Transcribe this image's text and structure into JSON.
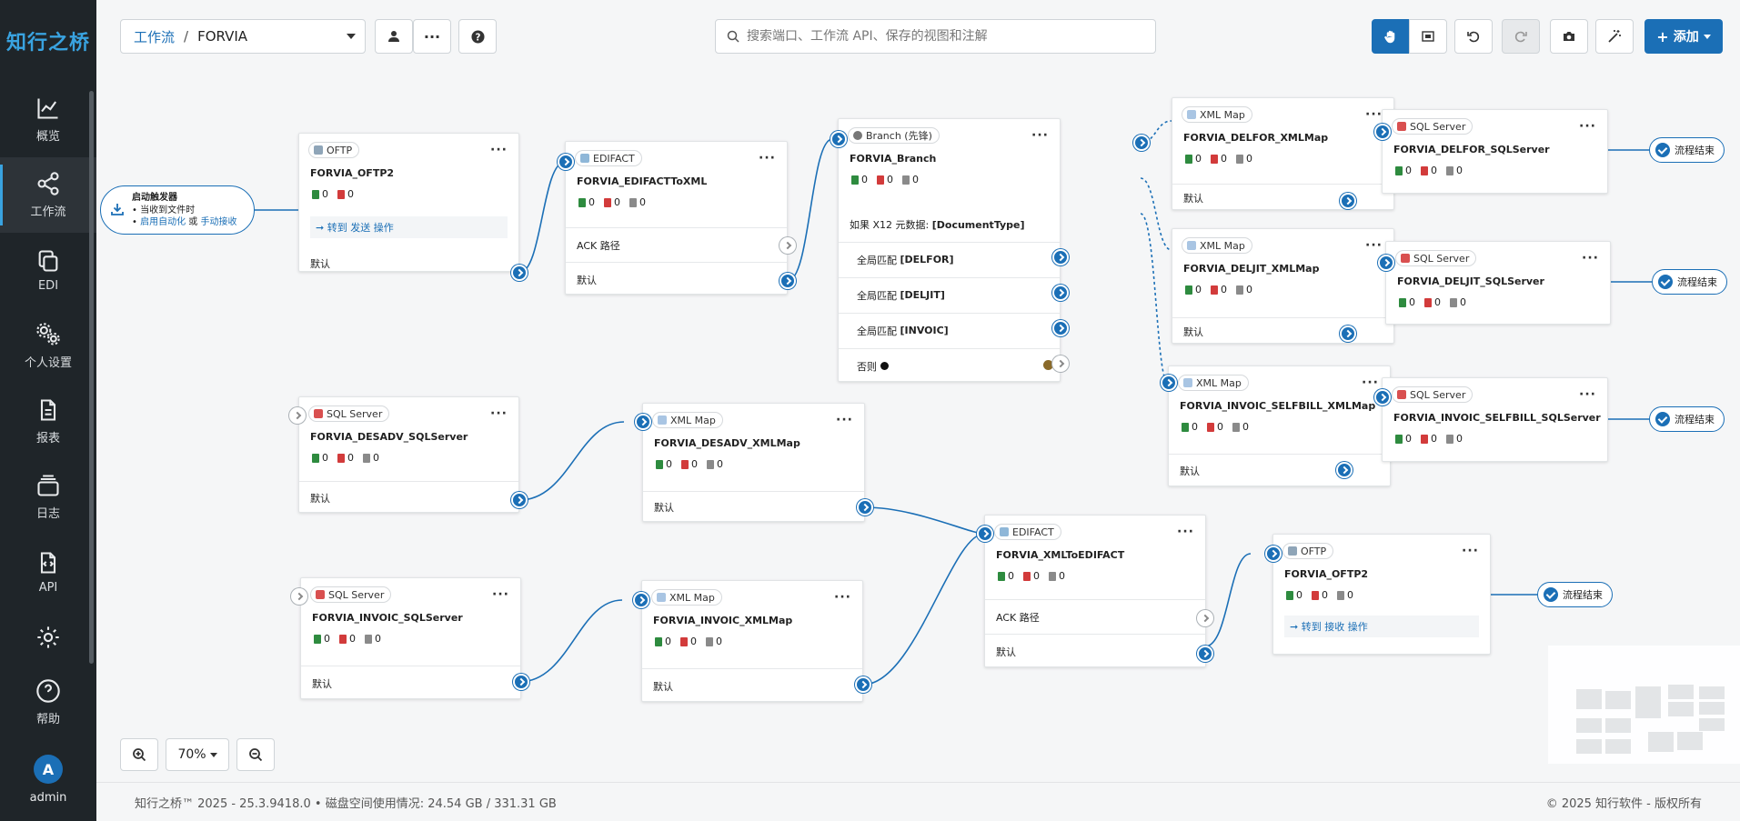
{
  "app": {
    "logo": "知行之桥"
  },
  "sidebar": {
    "items": [
      {
        "label": "概览",
        "icon": "chart-icon"
      },
      {
        "label": "工作流",
        "icon": "share-icon",
        "active": true
      },
      {
        "label": "EDI",
        "icon": "copy-icon"
      },
      {
        "label": "个人设置",
        "icon": "gears-icon"
      },
      {
        "label": "报表",
        "icon": "file-icon"
      },
      {
        "label": "日志",
        "icon": "stack-icon"
      },
      {
        "label": "API",
        "icon": "file-code-icon"
      },
      {
        "label": "",
        "icon": "gear-icon"
      },
      {
        "label": "帮助",
        "icon": "help-icon"
      }
    ],
    "user": {
      "initial": "A",
      "name": "admin"
    }
  },
  "header": {
    "breadcrumb_root": "工作流",
    "breadcrumb_sep": "/",
    "breadcrumb_current": "FORVIA",
    "search_placeholder": "搜索端口、工作流 API、保存的视图和注解",
    "add_label": "添加"
  },
  "trigger": {
    "title": "启动触发器",
    "line1": "当收到文件时",
    "link1": "启用自动化",
    "or": "或",
    "link2": "手动接收"
  },
  "nodes": {
    "oftp_in": {
      "type": "OFTP",
      "name": "FORVIA_OFTP2",
      "counts": [
        "0",
        "0"
      ],
      "action": "➞ 转到 发送 操作",
      "default": "默认"
    },
    "edifact_xml": {
      "type": "EDIFACT",
      "name": "FORVIA_EDIFACTToXML",
      "counts": [
        "0",
        "0",
        "0"
      ],
      "ack": "ACK 路径",
      "default": "默认"
    },
    "branch": {
      "type": "Branch (先锋)",
      "name": "FORVIA_Branch",
      "counts": [
        "0",
        "0",
        "0"
      ],
      "condition_prefix": "如果 X12 元数据:",
      "condition_field": "[DocumentType]",
      "cases": [
        {
          "prefix": "全局匹配",
          "value": "[DELFOR]"
        },
        {
          "prefix": "全局匹配",
          "value": "[DELJIT]"
        },
        {
          "prefix": "全局匹配",
          "value": "[INVOIC]"
        }
      ],
      "else": "否则"
    },
    "delfor_map": {
      "type": "XML Map",
      "name": "FORVIA_DELFOR_XMLMap",
      "counts": [
        "0",
        "0",
        "0"
      ],
      "default": "默认"
    },
    "deljit_map": {
      "type": "XML Map",
      "name": "FORVIA_DELJIT_XMLMap",
      "counts": [
        "0",
        "0",
        "0"
      ],
      "default": "默认"
    },
    "invoic_sb_map": {
      "type": "XML Map",
      "name": "FORVIA_INVOIC_SELFBILL_XMLMap",
      "counts": [
        "0",
        "0",
        "0"
      ],
      "default": "默认"
    },
    "delfor_sql": {
      "type": "SQL Server",
      "name": "FORVIA_DELFOR_SQLServer",
      "counts": [
        "0",
        "0",
        "0"
      ]
    },
    "deljit_sql": {
      "type": "SQL Server",
      "name": "FORVIA_DELJIT_SQLServer",
      "counts": [
        "0",
        "0",
        "0"
      ]
    },
    "invoic_sb_sql": {
      "type": "SQL Server",
      "name": "FORVIA_INVOIC_SELFBILL_SQLServer",
      "counts": [
        "0",
        "0",
        "0"
      ]
    },
    "desadv_sql": {
      "type": "SQL Server",
      "name": "FORVIA_DESADV_SQLServer",
      "counts": [
        "0",
        "0",
        "0"
      ],
      "default": "默认"
    },
    "desadv_map": {
      "type": "XML Map",
      "name": "FORVIA_DESADV_XMLMap",
      "counts": [
        "0",
        "0",
        "0"
      ],
      "default": "默认"
    },
    "invoic_sql": {
      "type": "SQL Server",
      "name": "FORVIA_INVOIC_SQLServer",
      "counts": [
        "0",
        "0",
        "0"
      ],
      "default": "默认"
    },
    "invoic_map": {
      "type": "XML Map",
      "name": "FORVIA_INVOIC_XMLMap",
      "counts": [
        "0",
        "0",
        "0"
      ],
      "default": "默认"
    },
    "xml_edifact": {
      "type": "EDIFACT",
      "name": "FORVIA_XMLToEDIFACT",
      "counts": [
        "0",
        "0",
        "0"
      ],
      "ack": "ACK 路径",
      "default": "默认"
    },
    "oftp_out": {
      "type": "OFTP",
      "name": "FORVIA_OFTP2",
      "counts": [
        "0",
        "0",
        "0"
      ],
      "action": "➞ 转到 接收 操作"
    }
  },
  "end_label": "流程结束",
  "zoom": {
    "level": "70%"
  },
  "footer": {
    "version": "知行之桥™ 2025 - 25.3.9418.0",
    "disk_label": "磁盘空间使用情况:",
    "disk_value": "24.54 GB / 331.31 GB",
    "copyright": "© 2025 知行软件 - 版权所有"
  },
  "colors": {
    "accent": "#1b6fb6",
    "sidebar": "#1f2529",
    "logo": "#39a3e0"
  }
}
